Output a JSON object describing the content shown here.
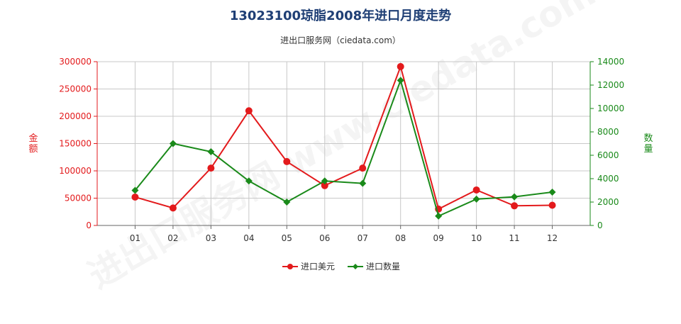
{
  "title": "13023100琼脂2008年进口月度走势",
  "subtitle": "进出口服务网（ciedata.com）",
  "watermark": "进出口服务网 www.ciedata.com",
  "colors": {
    "money": "#e31a1c",
    "qty": "#1a8a1a",
    "grid": "#c8c8c8",
    "axis": "#666666"
  },
  "chart_data": {
    "type": "line",
    "categories": [
      "01",
      "02",
      "03",
      "04",
      "05",
      "06",
      "07",
      "08",
      "09",
      "10",
      "11",
      "12"
    ],
    "left_axis": {
      "label": "金额",
      "ylim": [
        0,
        300000
      ],
      "ticks": [
        0,
        50000,
        100000,
        150000,
        200000,
        250000,
        300000
      ]
    },
    "right_axis": {
      "label": "数量",
      "ylim": [
        0,
        14000
      ],
      "ticks": [
        0,
        2000,
        4000,
        6000,
        8000,
        10000,
        12000,
        14000
      ]
    },
    "series": [
      {
        "name": "进口美元",
        "axis": "left",
        "marker": "circle",
        "color": "#e31a1c",
        "values": [
          52000,
          32000,
          105000,
          210000,
          117000,
          73000,
          105000,
          291000,
          30000,
          65000,
          36000,
          37000
        ]
      },
      {
        "name": "进口数量",
        "axis": "right",
        "marker": "diamond",
        "color": "#1a8a1a",
        "values": [
          3000,
          7000,
          6300,
          3800,
          2000,
          3800,
          3600,
          12400,
          800,
          2250,
          2450,
          2850
        ]
      }
    ],
    "grid": true,
    "legend": "bottom-center"
  }
}
